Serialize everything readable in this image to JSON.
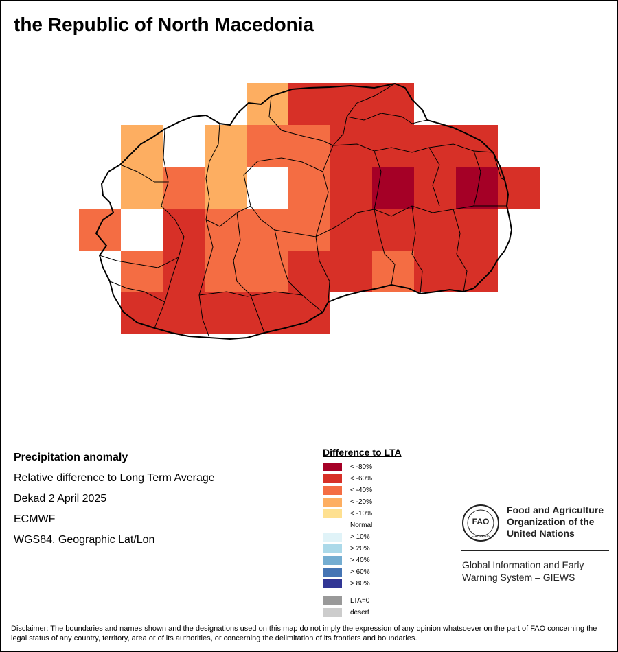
{
  "title": "the Republic of North Macedonia",
  "info": {
    "heading": "Precipitation anomaly",
    "line1": "Relative difference to Long Term Average",
    "line2": "Dekad 2 April 2025",
    "line3": "ECMWF",
    "line4": "WGS84, Geographic Lat/Lon"
  },
  "legend": {
    "title": "Difference to LTA",
    "items": [
      {
        "label": "< -80%",
        "color": "#a50026"
      },
      {
        "label": "< -60%",
        "color": "#d73027"
      },
      {
        "label": "< -40%",
        "color": "#f46d43"
      },
      {
        "label": "< -20%",
        "color": "#fdae61"
      },
      {
        "label": "< -10%",
        "color": "#fee090"
      },
      {
        "label": "Normal",
        "color": "#ffffff"
      },
      {
        "label": "> 10%",
        "color": "#e0f3f8"
      },
      {
        "label": "> 20%",
        "color": "#abd9e9"
      },
      {
        "label": "> 40%",
        "color": "#74add1"
      },
      {
        "label": "> 60%",
        "color": "#4575b4"
      },
      {
        "label": "> 80%",
        "color": "#313695"
      }
    ],
    "extra": [
      {
        "label": "LTA=0",
        "color": "#999999"
      },
      {
        "label": "desert",
        "color": "#cccccc"
      }
    ]
  },
  "fao": {
    "logo_letters": "FAO",
    "logo_motto": "FIAT PANIS",
    "name_line1": "Food and Agriculture",
    "name_line2": "Organization of the",
    "name_line3": "United Nations",
    "giews_line1": "Global Information and Early",
    "giews_line2": "Warning System – GIEWS"
  },
  "disclaimer": "Disclaimer: The boundaries and names shown and the designations used on this map do not imply the expression of any opinion whatsoever on the part of FAO concerning the legal status of any country, territory, area or of its authorities, or concerning the delimitation of its frontiers and boundaries.",
  "map": {
    "grid_columns": 11,
    "grid_rows": 7,
    "grid_note": "anomaly class per cell, row 0 = north; -1 = no data",
    "grid": [
      [
        -1,
        -1,
        -1,
        -1,
        3,
        1,
        1,
        1,
        -1,
        -1,
        -1
      ],
      [
        -1,
        3,
        5,
        3,
        2,
        2,
        1,
        1,
        1,
        1,
        -1
      ],
      [
        -1,
        3,
        2,
        3,
        5,
        2,
        1,
        0,
        1,
        0,
        1
      ],
      [
        2,
        5,
        1,
        2,
        2,
        2,
        1,
        1,
        1,
        1,
        -1
      ],
      [
        -1,
        2,
        1,
        2,
        2,
        1,
        1,
        2,
        1,
        1,
        -1
      ],
      [
        -1,
        1,
        1,
        1,
        1,
        1,
        -1,
        -1,
        -1,
        -1,
        -1
      ],
      [
        -1,
        -1,
        -1,
        -1,
        -1,
        -1,
        -1,
        -1,
        -1,
        -1,
        -1
      ]
    ]
  }
}
